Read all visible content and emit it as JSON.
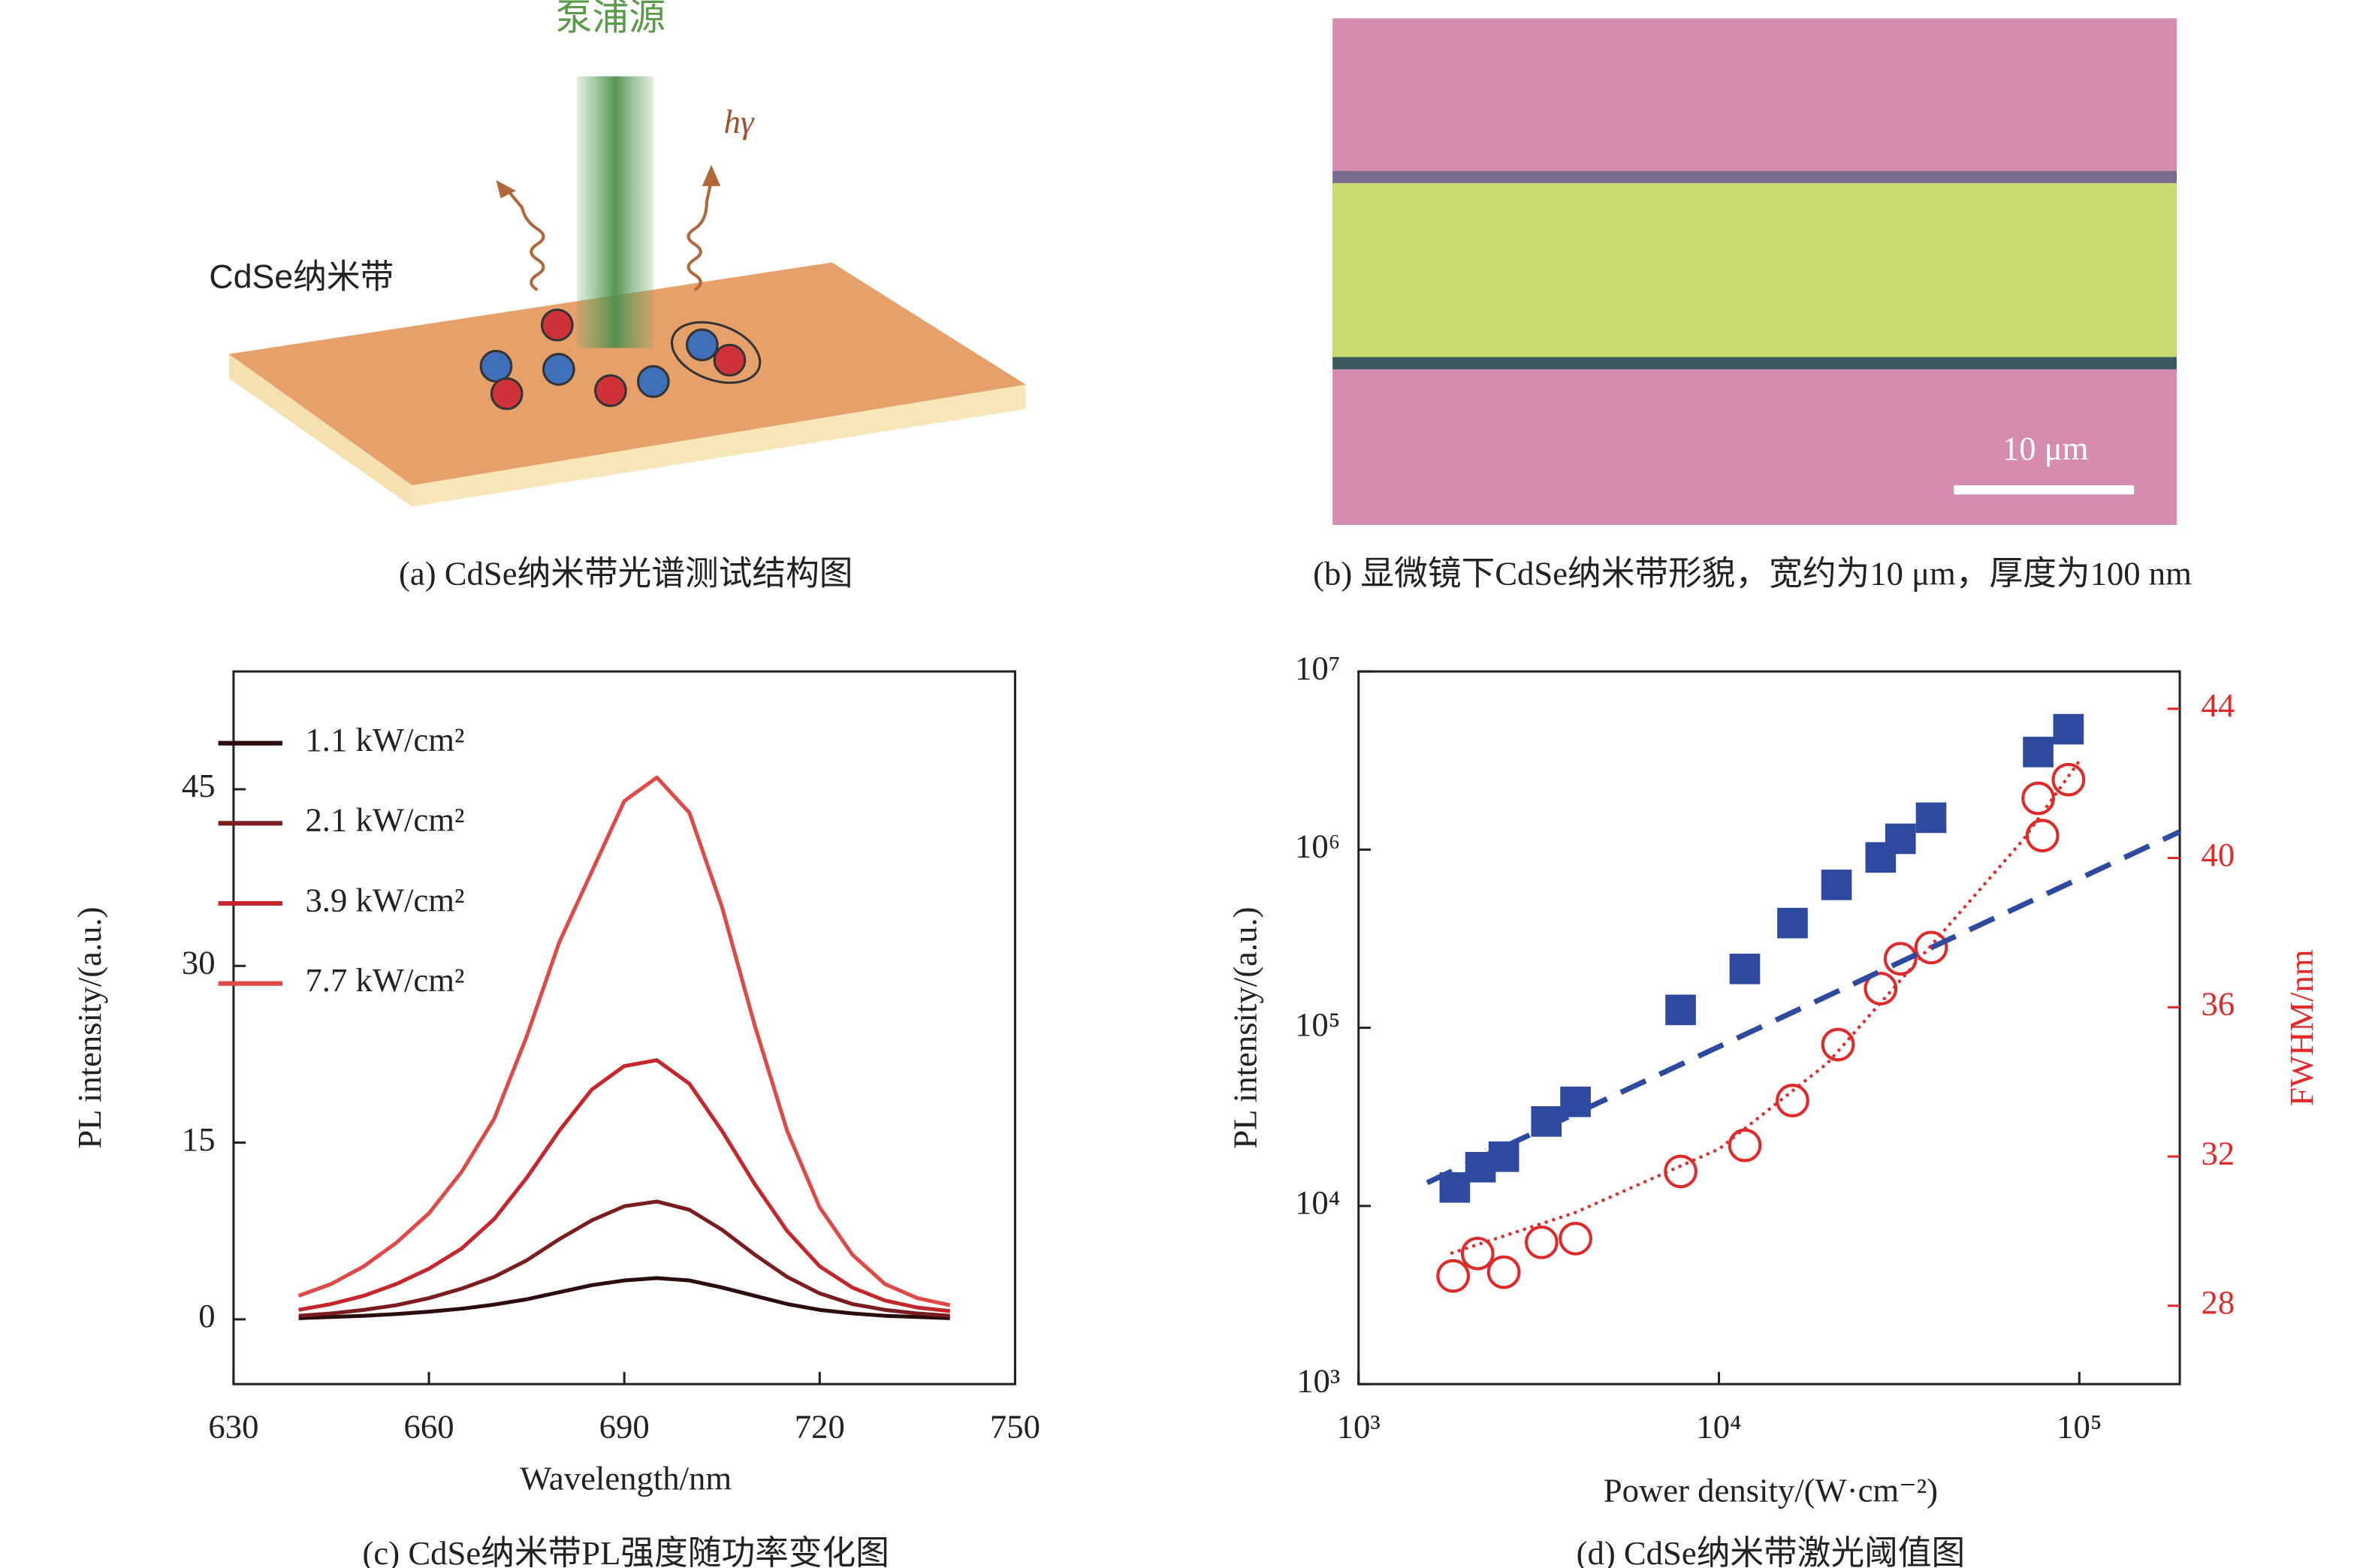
{
  "panel_a": {
    "pump_label": "泵浦源",
    "photon_label": "hγ",
    "material_label": "CdSe纳米带",
    "caption": "(a) CdSe纳米带光谱测试结构图"
  },
  "panel_b": {
    "scale_label": "10 μm",
    "caption": "(b) 显微镜下CdSe纳米带形貌，宽约为10 μm，厚度为100 nm"
  },
  "chart_data": [
    {
      "type": "line",
      "caption": "(c) CdSe纳米带PL强度随功率变化图",
      "x_label": "Wavelength/nm",
      "y_label": "PL intensity/(a.u.)",
      "x": [
        640,
        645,
        650,
        655,
        660,
        665,
        670,
        675,
        680,
        685,
        690,
        695,
        700,
        705,
        710,
        715,
        720,
        725,
        730,
        735,
        740
      ],
      "series": [
        {
          "name": "1.1 kW/cm²",
          "color": "#2b0d0e",
          "values": [
            0.1,
            0.2,
            0.3,
            0.45,
            0.65,
            0.9,
            1.25,
            1.7,
            2.3,
            2.9,
            3.3,
            3.5,
            3.3,
            2.7,
            2,
            1.3,
            0.8,
            0.5,
            0.3,
            0.2,
            0.1
          ]
        },
        {
          "name": "2.1 kW/cm²",
          "color": "#7b1c20",
          "values": [
            0.3,
            0.5,
            0.8,
            1.2,
            1.8,
            2.6,
            3.6,
            5,
            6.8,
            8.4,
            9.6,
            10,
            9.3,
            7.6,
            5.5,
            3.6,
            2.2,
            1.3,
            0.8,
            0.5,
            0.3
          ]
        },
        {
          "name": "3.9 kW/cm²",
          "color": "#c4262b",
          "values": [
            0.8,
            1.3,
            2,
            3,
            4.3,
            6,
            8.5,
            12,
            16,
            19.5,
            21.5,
            22,
            20,
            16,
            11.5,
            7.5,
            4.5,
            2.7,
            1.6,
            1,
            0.7
          ]
        },
        {
          "name": "7.7 kW/cm²",
          "color": "#de4a45",
          "values": [
            2,
            3,
            4.5,
            6.5,
            9,
            12.5,
            17,
            24,
            32,
            38,
            44,
            46,
            43,
            35,
            25,
            16,
            9.5,
            5.5,
            3,
            1.8,
            1.2
          ]
        }
      ],
      "xlim": [
        630,
        750
      ],
      "xticks": [
        630,
        660,
        690,
        720,
        750
      ],
      "ylim": [
        -5.5,
        55
      ],
      "yticks": [
        0,
        15,
        30,
        45
      ],
      "legend": "upper-left",
      "grid": false
    },
    {
      "type": "scatter",
      "caption": "(d) CdSe纳米带激光阈值图",
      "x_label": "Power density/(W·cm⁻²)",
      "y_label": "PL intensity/(a.u.)",
      "y2_label": "FWHM/nm",
      "xscale": "log",
      "yscale": "log",
      "xlim": [
        1000,
        190000
      ],
      "xticks": [
        {
          "value": 1000,
          "label": "10³"
        },
        {
          "value": 10000,
          "label": "10⁴"
        },
        {
          "value": 100000,
          "label": "10⁵"
        }
      ],
      "ylim": [
        1000,
        10000000
      ],
      "yticks": [
        {
          "value": 1000,
          "label": "10³"
        },
        {
          "value": 10000,
          "label": "10⁴"
        },
        {
          "value": 100000,
          "label": "10⁵"
        },
        {
          "value": 1000000,
          "label": "10⁶"
        },
        {
          "value": 10000000,
          "label": "10⁷"
        }
      ],
      "y2lim": [
        25.9,
        45
      ],
      "y2ticks": [
        28,
        32,
        36,
        40,
        44
      ],
      "y2_color": "#e02a2a",
      "series": [
        {
          "marker": "square",
          "color": "#2e4a9e",
          "x": [
            1850,
            2180,
            2530,
            3320,
            4000,
            7830,
            11800,
            16000,
            21200,
            28100,
            31900,
            38800,
            76900,
            93300
          ],
          "values": [
            12700,
            16500,
            18900,
            29800,
            38400,
            126000,
            214000,
            387000,
            634000,
            904000,
            1150000,
            1510000,
            3530000,
            4740000
          ]
        },
        {
          "marker": "open-circle",
          "color": "#e02a2a",
          "axis": "y2",
          "x": [
            1830,
            2140,
            2530,
            3220,
            4000,
            7830,
            11800,
            16000,
            21400,
            28100,
            31900,
            38800,
            76900,
            79000,
            93300
          ],
          "values": [
            28.8,
            29.4,
            28.9,
            29.7,
            29.8,
            31.6,
            32.3,
            33.5,
            35.0,
            36.5,
            37.3,
            37.6,
            41.6,
            40.6,
            42.1
          ]
        },
        {
          "line_style": "dashed",
          "color": "#2e4a9e",
          "x": [
            1550,
            190000
          ],
          "values": [
            13500,
            1260000
          ]
        },
        {
          "line_style": "dotted",
          "color": "#e02a2a",
          "axis": "y2",
          "x": [
            1800,
            4000,
            10000,
            20000,
            40000,
            70000,
            100000
          ],
          "values": [
            29.4,
            30.5,
            32.2,
            34.5,
            37.8,
            40.5,
            42.6
          ]
        }
      ],
      "grid": false
    }
  ]
}
